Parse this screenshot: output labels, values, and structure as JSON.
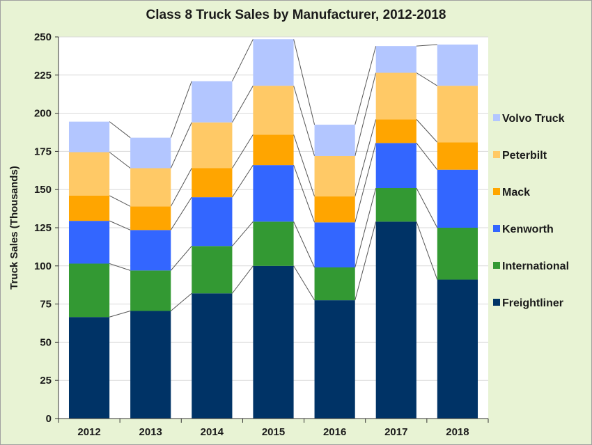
{
  "chart_data": {
    "type": "bar",
    "stacked": true,
    "title": "Class 8 Truck Sales by Manufacturer, 2012-2018",
    "xlabel": "",
    "ylabel": "Truck Sales (Thousands)",
    "ylim": [
      0,
      250
    ],
    "yticks": [
      0,
      25,
      50,
      75,
      100,
      125,
      150,
      175,
      200,
      225,
      250
    ],
    "categories": [
      "2012",
      "2013",
      "2014",
      "2015",
      "2016",
      "2017",
      "2018"
    ],
    "series": [
      {
        "name": "Freightliner",
        "color": "#003366",
        "values": [
          66.5,
          70.5,
          82,
          100,
          77.5,
          129,
          91
        ]
      },
      {
        "name": "International",
        "color": "#339933",
        "values": [
          35,
          26.5,
          31,
          29,
          21.5,
          22,
          34
        ]
      },
      {
        "name": "Kenworth",
        "color": "#3366ff",
        "values": [
          28,
          26.5,
          32,
          37,
          29.5,
          29.5,
          38
        ]
      },
      {
        "name": "Mack",
        "color": "#ffa500",
        "values": [
          16.5,
          15.5,
          19,
          20,
          17,
          15.5,
          18
        ]
      },
      {
        "name": "Peterbilt",
        "color": "#ffc966",
        "values": [
          28.5,
          25,
          30,
          32,
          26.5,
          30.5,
          37
        ]
      },
      {
        "name": "Volvo Truck",
        "color": "#b3c6ff",
        "values": [
          20,
          20,
          27,
          30.5,
          20.5,
          17.5,
          27
        ]
      }
    ],
    "grid": true,
    "legend_position": "right",
    "legend_order": [
      "Volvo Truck",
      "Peterbilt",
      "Mack",
      "Kenworth",
      "International",
      "Freightliner"
    ]
  }
}
